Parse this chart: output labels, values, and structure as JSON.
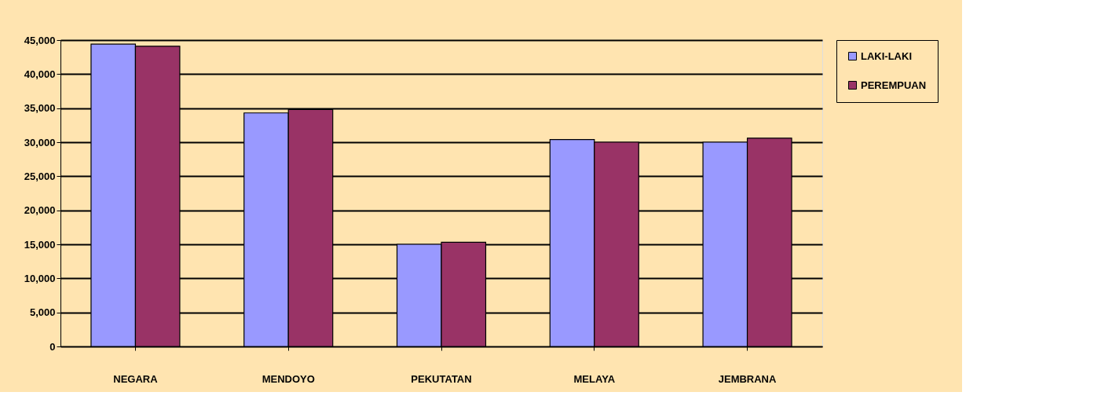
{
  "chart_data": {
    "type": "bar",
    "categories": [
      "NEGARA",
      "MENDOYO",
      "PEKUTATAN",
      "MELAYA",
      "JEMBRANA"
    ],
    "series": [
      {
        "name": "LAKI-LAKI",
        "color": "#9999ff",
        "values": [
          44400,
          34300,
          15000,
          30400,
          30000
        ]
      },
      {
        "name": "PEREMPUAN",
        "color": "#993366",
        "values": [
          44100,
          34800,
          15300,
          30000,
          30600
        ]
      }
    ],
    "ylim": [
      0,
      45000
    ],
    "yticks": [
      {
        "value": 0,
        "label": "0"
      },
      {
        "value": 5000,
        "label": "5,000"
      },
      {
        "value": 10000,
        "label": "10,000"
      },
      {
        "value": 15000,
        "label": "15,000"
      },
      {
        "value": 20000,
        "label": "20,000"
      },
      {
        "value": 25000,
        "label": "25,000"
      },
      {
        "value": 30000,
        "label": "30,000"
      },
      {
        "value": 35000,
        "label": "35,000"
      },
      {
        "value": 40000,
        "label": "40,000"
      },
      {
        "value": 45000,
        "label": "45,000"
      }
    ],
    "grid": "y",
    "legend": "right"
  }
}
